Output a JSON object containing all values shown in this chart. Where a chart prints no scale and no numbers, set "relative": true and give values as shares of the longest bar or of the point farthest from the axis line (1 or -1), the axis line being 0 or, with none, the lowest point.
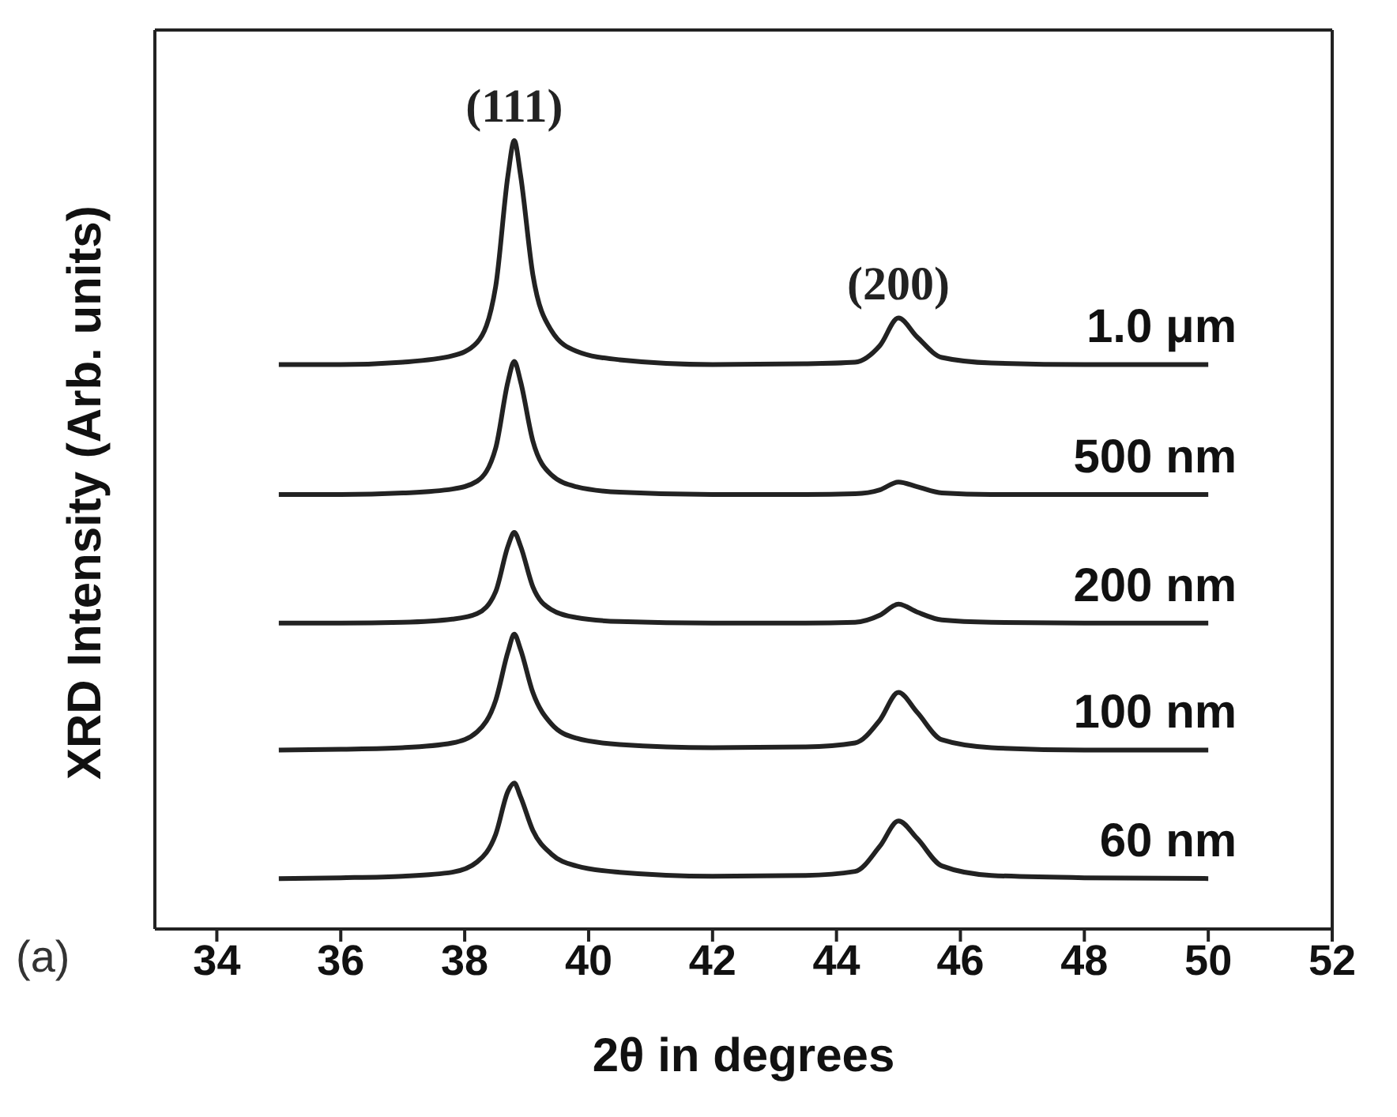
{
  "chart_data": {
    "type": "line",
    "relative": true,
    "xlabel": "2θ in degrees",
    "ylabel": "XRD Intensity (Arb. units)",
    "x": [
      35,
      36,
      37,
      37.8,
      38.2,
      38.5,
      38.7,
      38.8,
      38.9,
      39.1,
      39.4,
      39.8,
      40.5,
      42,
      43.5,
      44.3,
      44.7,
      45.0,
      45.3,
      45.7,
      46.5,
      48,
      50
    ],
    "xlim": [
      33,
      52
    ],
    "xticks": [
      34,
      36,
      38,
      40,
      42,
      44,
      46,
      48,
      50,
      52
    ],
    "marker": "none",
    "line_style": "solid",
    "series": [
      {
        "name": "1.0 μm",
        "color": "#222222",
        "values": [
          0.716,
          0.716,
          0.719,
          0.727,
          0.744,
          0.815,
          0.957,
          1.0,
          0.957,
          0.83,
          0.759,
          0.733,
          0.722,
          0.716,
          0.717,
          0.719,
          0.74,
          0.775,
          0.751,
          0.725,
          0.718,
          0.716,
          0.716
        ]
      },
      {
        "name": "500 nm",
        "color": "#222222",
        "values": [
          0.551,
          0.551,
          0.553,
          0.558,
          0.568,
          0.61,
          0.695,
          0.72,
          0.695,
          0.619,
          0.576,
          0.561,
          0.554,
          0.551,
          0.551,
          0.552,
          0.557,
          0.567,
          0.561,
          0.553,
          0.551,
          0.551,
          0.551
        ]
      },
      {
        "name": "200 nm",
        "color": "#222222",
        "values": [
          0.388,
          0.388,
          0.389,
          0.393,
          0.4,
          0.428,
          0.486,
          0.503,
          0.486,
          0.434,
          0.405,
          0.395,
          0.39,
          0.388,
          0.388,
          0.389,
          0.398,
          0.412,
          0.402,
          0.392,
          0.389,
          0.388,
          0.388
        ]
      },
      {
        "name": "100 nm",
        "color": "#222222",
        "values": [
          0.227,
          0.228,
          0.23,
          0.236,
          0.25,
          0.29,
          0.352,
          0.374,
          0.355,
          0.3,
          0.26,
          0.242,
          0.234,
          0.23,
          0.231,
          0.236,
          0.265,
          0.3,
          0.275,
          0.24,
          0.23,
          0.227,
          0.227
        ]
      },
      {
        "name": "60 nm",
        "color": "#222222",
        "values": [
          0.064,
          0.065,
          0.067,
          0.072,
          0.085,
          0.12,
          0.175,
          0.185,
          0.168,
          0.125,
          0.095,
          0.08,
          0.072,
          0.067,
          0.068,
          0.073,
          0.105,
          0.137,
          0.115,
          0.08,
          0.068,
          0.065,
          0.064
        ]
      }
    ],
    "annotations": [
      {
        "text": "(111)",
        "x": 38.8,
        "y": 1.0
      },
      {
        "text": "(200)",
        "x": 45.0,
        "y": 0.775
      },
      "(a)"
    ]
  }
}
